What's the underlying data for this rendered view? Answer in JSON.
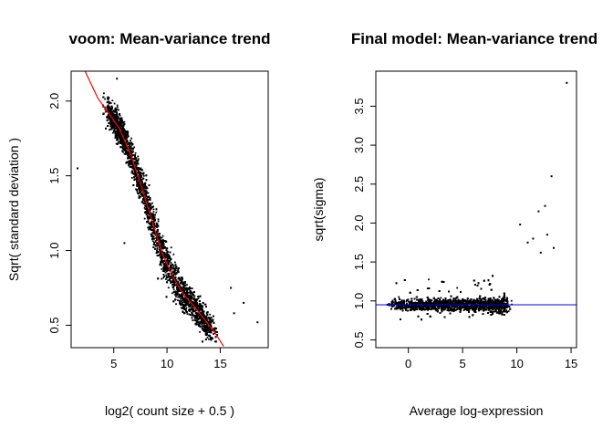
{
  "chart_data": [
    {
      "type": "scatter",
      "title": "voom: Mean-variance trend",
      "xlabel": "log2( count size + 0.5 )",
      "ylabel": "Sqrt( standard deviation )",
      "xlim": [
        1.0,
        19.5
      ],
      "ylim": [
        0.35,
        2.2
      ],
      "xticks": [
        5,
        10,
        15
      ],
      "xtick_labels": [
        "5",
        "10",
        "15"
      ],
      "yticks": [
        0.5,
        1.0,
        1.5,
        2.0
      ],
      "ytick_labels": [
        "0.5",
        "1.0",
        "1.5",
        "2.0"
      ],
      "grid": false,
      "point_color": "#000000",
      "trend_color": "#ff0000",
      "trend": {
        "x": [
          2.3,
          3.5,
          4.5,
          5.5,
          6.5,
          7.5,
          8.5,
          9.5,
          10.5,
          11.5,
          12.5,
          13.5,
          14.5,
          15.3
        ],
        "y": [
          2.2,
          2.02,
          1.92,
          1.82,
          1.66,
          1.45,
          1.22,
          0.99,
          0.83,
          0.71,
          0.63,
          0.54,
          0.45,
          0.36
        ]
      },
      "outliers": {
        "x": [
          1.6,
          5.3,
          6.0,
          17.2,
          18.5,
          16.3,
          16.0
        ],
        "y": [
          1.55,
          2.15,
          1.05,
          0.65,
          0.52,
          0.58,
          0.75
        ]
      }
    },
    {
      "type": "scatter",
      "title": "Final model: Mean-variance trend",
      "xlabel": "Average log-expression",
      "ylabel": "sqrt(sigma)",
      "xlim": [
        -3.0,
        15.5
      ],
      "ylim": [
        0.4,
        3.95
      ],
      "xticks": [
        0,
        5,
        10,
        15
      ],
      "xtick_labels": [
        "0",
        "5",
        "10",
        "15"
      ],
      "yticks": [
        0.5,
        1.0,
        1.5,
        2.0,
        2.5,
        3.0,
        3.5
      ],
      "ytick_labels": [
        "0.5",
        "1.0",
        "1.5",
        "2.0",
        "2.5",
        "3.0",
        "3.5"
      ],
      "grid": false,
      "point_color": "#000000",
      "hline_y": 0.95,
      "hline_color": "#0000ff",
      "outliers": {
        "x": [
          14.6,
          13.2,
          12.6,
          12.0,
          11.5,
          10.3,
          12.8,
          11.0,
          13.4,
          12.2
        ],
        "y": [
          3.8,
          2.6,
          2.22,
          2.15,
          1.8,
          1.98,
          1.85,
          1.75,
          1.68,
          1.62
        ]
      }
    }
  ]
}
